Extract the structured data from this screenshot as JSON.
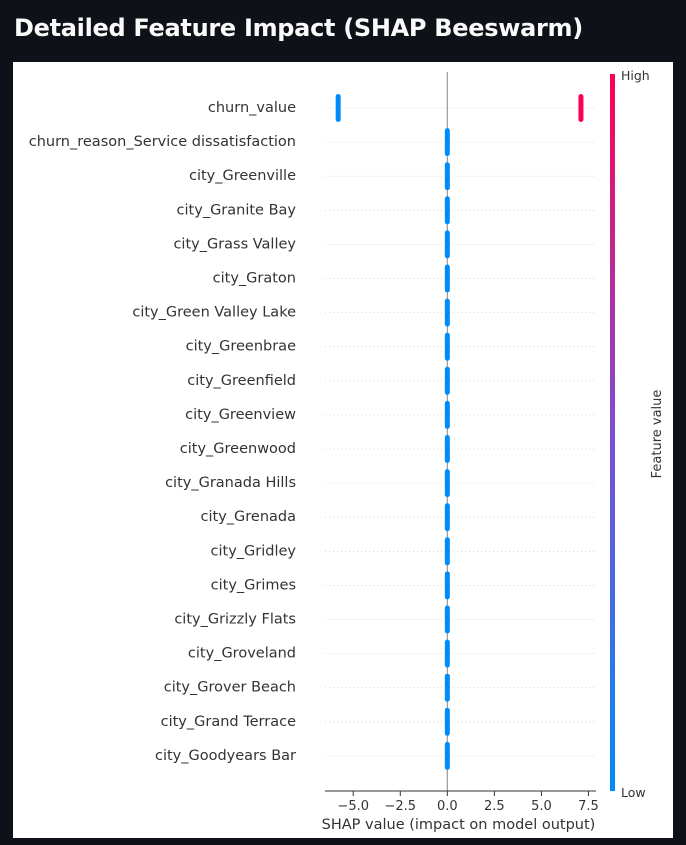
{
  "page": {
    "heading": "Detailed Feature Impact (SHAP Beeswarm)"
  },
  "chart_data": {
    "type": "scatter",
    "xlabel": "SHAP value (impact on model output)",
    "xlim": [
      -6.5,
      7.9
    ],
    "xticks": [
      -5.0,
      -2.5,
      0.0,
      2.5,
      5.0,
      7.5
    ],
    "xtick_labels": [
      "−5.0",
      "−2.5",
      "0.0",
      "2.5",
      "5.0",
      "7.5"
    ],
    "zero_line": 0.0,
    "colorbar": {
      "label": "Feature value",
      "high_label": "High",
      "low_label": "Low",
      "high_color": "#ff0052",
      "low_color": "#008bfb"
    },
    "features": [
      {
        "name": "churn_value",
        "points": [
          {
            "x": -5.8,
            "value": "low"
          },
          {
            "x": 7.1,
            "value": "high"
          }
        ]
      },
      {
        "name": "churn_reason_Service dissatisfaction",
        "points": [
          {
            "x": 0.0,
            "value": "low"
          }
        ]
      },
      {
        "name": "city_Greenville",
        "points": [
          {
            "x": 0.0,
            "value": "low"
          }
        ]
      },
      {
        "name": "city_Granite Bay",
        "points": [
          {
            "x": 0.0,
            "value": "low"
          }
        ]
      },
      {
        "name": "city_Grass Valley",
        "points": [
          {
            "x": 0.0,
            "value": "low"
          }
        ]
      },
      {
        "name": "city_Graton",
        "points": [
          {
            "x": 0.0,
            "value": "low"
          }
        ]
      },
      {
        "name": "city_Green Valley Lake",
        "points": [
          {
            "x": 0.0,
            "value": "low"
          }
        ]
      },
      {
        "name": "city_Greenbrae",
        "points": [
          {
            "x": 0.0,
            "value": "low"
          }
        ]
      },
      {
        "name": "city_Greenfield",
        "points": [
          {
            "x": 0.0,
            "value": "low"
          }
        ]
      },
      {
        "name": "city_Greenview",
        "points": [
          {
            "x": 0.0,
            "value": "low"
          }
        ]
      },
      {
        "name": "city_Greenwood",
        "points": [
          {
            "x": 0.0,
            "value": "low"
          }
        ]
      },
      {
        "name": "city_Granada Hills",
        "points": [
          {
            "x": 0.0,
            "value": "low"
          }
        ]
      },
      {
        "name": "city_Grenada",
        "points": [
          {
            "x": 0.0,
            "value": "low"
          }
        ]
      },
      {
        "name": "city_Gridley",
        "points": [
          {
            "x": 0.0,
            "value": "low"
          }
        ]
      },
      {
        "name": "city_Grimes",
        "points": [
          {
            "x": 0.0,
            "value": "low"
          }
        ]
      },
      {
        "name": "city_Grizzly Flats",
        "points": [
          {
            "x": 0.0,
            "value": "low"
          }
        ]
      },
      {
        "name": "city_Groveland",
        "points": [
          {
            "x": 0.0,
            "value": "low"
          }
        ]
      },
      {
        "name": "city_Grover Beach",
        "points": [
          {
            "x": 0.0,
            "value": "low"
          }
        ]
      },
      {
        "name": "city_Grand Terrace",
        "points": [
          {
            "x": 0.0,
            "value": "low"
          }
        ]
      },
      {
        "name": "city_Goodyears Bar",
        "points": [
          {
            "x": 0.0,
            "value": "low"
          }
        ]
      }
    ]
  }
}
